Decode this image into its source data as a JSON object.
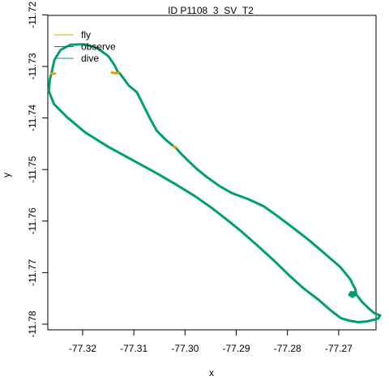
{
  "chart_data": {
    "type": "line",
    "title": "ID P1108_3_SV_T2",
    "xlabel": "x",
    "ylabel": "y",
    "xlim": [
      -77.3268,
      -77.2627
    ],
    "ylim": [
      -11.7811,
      -11.7201
    ],
    "x_ticks": [
      -77.32,
      -77.31,
      -77.3,
      -77.29,
      -77.28,
      -77.27
    ],
    "x_tick_labels": [
      "-77.32",
      "-77.31",
      "-77.30",
      "-77.29",
      "-77.28",
      "-77.27"
    ],
    "y_ticks": [
      -11.72,
      -11.73,
      -11.74,
      -11.75,
      -11.76,
      -11.77,
      -11.78
    ],
    "y_tick_labels": [
      "-11.72",
      "-11.73",
      "-11.74",
      "-11.75",
      "-11.76",
      "-11.77",
      "-11.78"
    ],
    "grid": false,
    "legend_position": "top-left",
    "series": [
      {
        "name": "fly",
        "color": "#E69F00",
        "segments": [
          [
            [
              -77.3261,
              -11.7314
            ],
            [
              -77.3254,
              -11.7314
            ]
          ],
          [
            [
              -77.3143,
              -11.7312
            ],
            [
              -77.3136,
              -11.7313
            ],
            [
              -77.313,
              -11.7313
            ]
          ],
          [
            [
              -77.3022,
              -11.7455
            ],
            [
              -77.3018,
              -11.7457
            ]
          ]
        ]
      },
      {
        "name": "observe",
        "color": "#0072B2",
        "segments": []
      },
      {
        "name": "dive",
        "color": "#009E73",
        "segments": [
          [
            [
              -77.3128,
              -11.7313
            ],
            [
              -77.3118,
              -11.7326
            ],
            [
              -77.311,
              -11.7337
            ],
            [
              -77.3094,
              -11.735
            ],
            [
              -77.308,
              -11.7378
            ],
            [
              -77.3068,
              -11.7402
            ],
            [
              -77.3055,
              -11.7425
            ],
            [
              -77.3037,
              -11.7443
            ],
            [
              -77.3022,
              -11.7455
            ],
            [
              -77.3018,
              -11.7458
            ],
            [
              -77.3008,
              -11.7469
            ],
            [
              -77.2995,
              -11.7482
            ],
            [
              -77.2978,
              -11.7498
            ],
            [
              -77.2957,
              -11.7515
            ],
            [
              -77.2933,
              -11.7532
            ],
            [
              -77.2908,
              -11.7546
            ],
            [
              -77.2878,
              -11.7557
            ],
            [
              -77.2847,
              -11.7571
            ],
            [
              -77.282,
              -11.759
            ],
            [
              -77.2793,
              -11.761
            ],
            [
              -77.2758,
              -11.7637
            ],
            [
              -77.2725,
              -11.7665
            ],
            [
              -77.2697,
              -11.7689
            ],
            [
              -77.2678,
              -11.7712
            ],
            [
              -77.2667,
              -11.7733
            ],
            [
              -77.2666,
              -11.7742
            ],
            [
              -77.2673,
              -11.7747
            ],
            [
              -77.2679,
              -11.7743
            ],
            [
              -77.2676,
              -11.7738
            ],
            [
              -77.2669,
              -11.7739
            ],
            [
              -77.267,
              -11.7745
            ],
            [
              -77.2677,
              -11.7744
            ],
            [
              -77.267,
              -11.7738
            ]
          ],
          [
            [
              -77.2666,
              -11.7742
            ],
            [
              -77.2654,
              -11.7757
            ],
            [
              -77.2643,
              -11.7768
            ],
            [
              -77.263,
              -11.7779
            ],
            [
              -77.2619,
              -11.7783
            ],
            [
              -77.2623,
              -11.7789
            ],
            [
              -77.2634,
              -11.7792
            ],
            [
              -77.2646,
              -11.7795
            ],
            [
              -77.2662,
              -11.7796
            ],
            [
              -77.268,
              -11.7793
            ],
            [
              -77.2696,
              -11.7788
            ],
            [
              -77.2716,
              -11.7773
            ],
            [
              -77.274,
              -11.7752
            ],
            [
              -77.2768,
              -11.7731
            ],
            [
              -77.2797,
              -11.7705
            ],
            [
              -77.2827,
              -11.7676
            ],
            [
              -77.2858,
              -11.7648
            ],
            [
              -77.2889,
              -11.7621
            ],
            [
              -77.292,
              -11.7596
            ],
            [
              -77.295,
              -11.7573
            ],
            [
              -77.298,
              -11.7552
            ],
            [
              -77.3016,
              -11.753
            ],
            [
              -77.3054,
              -11.7508
            ],
            [
              -77.3102,
              -11.7482
            ],
            [
              -77.315,
              -11.7456
            ],
            [
              -77.3195,
              -11.7428
            ],
            [
              -77.3231,
              -11.7398
            ],
            [
              -77.3256,
              -11.7373
            ],
            [
              -77.3266,
              -11.7348
            ],
            [
              -77.3264,
              -11.7325
            ],
            [
              -77.3261,
              -11.7314
            ],
            [
              -77.3255,
              -11.7287
            ],
            [
              -77.3243,
              -11.7268
            ],
            [
              -77.3224,
              -11.7258
            ],
            [
              -77.3198,
              -11.7257
            ],
            [
              -77.3172,
              -11.7264
            ],
            [
              -77.315,
              -11.728
            ],
            [
              -77.3138,
              -11.7297
            ],
            [
              -77.313,
              -11.7313
            ]
          ]
        ]
      }
    ]
  }
}
